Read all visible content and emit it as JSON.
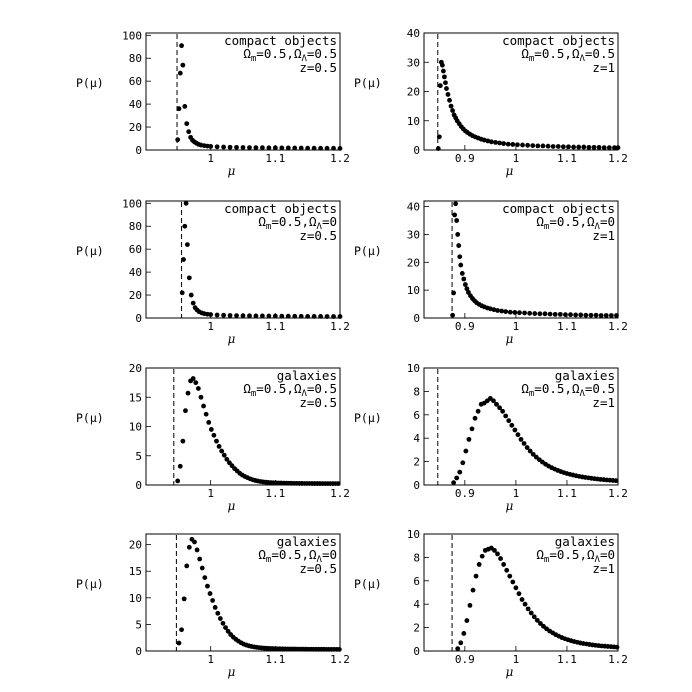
{
  "chart_data": [
    {
      "type": "scatter",
      "annotation": {
        "line1": "compact objects",
        "om_sym": "Ω",
        "om_sub": "m",
        "om_val": "=0.5,",
        "ol_sym": "Ω",
        "ol_sub": "Λ",
        "ol_val": "=0.5",
        "line3": "z=0.5"
      },
      "xlabel": "μ",
      "ylabel": "P(μ)",
      "xlim": [
        0.9,
        1.2
      ],
      "ylim": [
        0,
        102
      ],
      "xticks": [
        1,
        1.1,
        1.2
      ],
      "xtick_labels": [
        "1",
        "1.1",
        "1.2"
      ],
      "yticks": [
        0,
        20,
        40,
        60,
        80,
        100
      ],
      "ytick_labels": [
        "0",
        "20",
        "40",
        "60",
        "80",
        "100"
      ],
      "cutoff_x": 0.948,
      "x": [
        0.949,
        0.951,
        0.953,
        0.955,
        0.957,
        0.96,
        0.963,
        0.966,
        0.969,
        0.972,
        0.975,
        0.978,
        0.981,
        0.985,
        0.99,
        0.995,
        1.0,
        1.01,
        1.02,
        1.03,
        1.04,
        1.05,
        1.06,
        1.07,
        1.08,
        1.09,
        1.1,
        1.11,
        1.12,
        1.13,
        1.14,
        1.15,
        1.16,
        1.17,
        1.18,
        1.19,
        1.2
      ],
      "y": [
        9,
        36,
        67,
        91,
        74,
        38,
        23,
        16,
        11,
        8.5,
        7,
        6,
        5,
        4.3,
        3.8,
        3.4,
        3.1,
        2.8,
        2.6,
        2.4,
        2.3,
        2.2,
        2.1,
        2.0,
        2.0,
        1.9,
        1.9,
        1.8,
        1.8,
        1.7,
        1.7,
        1.6,
        1.6,
        1.5,
        1.5,
        1.5,
        1.4
      ]
    },
    {
      "type": "scatter",
      "annotation": {
        "line1": "compact objects",
        "om_sym": "Ω",
        "om_sub": "m",
        "om_val": "=0.5,",
        "ol_sym": "Ω",
        "ol_sub": "Λ",
        "ol_val": "=0.5",
        "line3": "z=1"
      },
      "xlabel": "μ",
      "ylabel": "P(μ)",
      "xlim": [
        0.82,
        1.2
      ],
      "ylim": [
        0,
        40
      ],
      "xticks": [
        0.9,
        1,
        1.1,
        1.2
      ],
      "xtick_labels": [
        "0.9",
        "1",
        "1.1",
        "1.2"
      ],
      "yticks": [
        0,
        10,
        20,
        30,
        40
      ],
      "ytick_labels": [
        "0",
        "10",
        "20",
        "30",
        "40"
      ],
      "cutoff_x": 0.847,
      "x": [
        0.848,
        0.85,
        0.852,
        0.854,
        0.856,
        0.858,
        0.86,
        0.862,
        0.864,
        0.867,
        0.87,
        0.873,
        0.876,
        0.879,
        0.882,
        0.885,
        0.889,
        0.893,
        0.897,
        0.901,
        0.905,
        0.91,
        0.915,
        0.92,
        0.926,
        0.932,
        0.938,
        0.945,
        0.952,
        0.96,
        0.968,
        0.976,
        0.985,
        0.994,
        1.003,
        1.013,
        1.023,
        1.033,
        1.043,
        1.053,
        1.063,
        1.073,
        1.083,
        1.093,
        1.103,
        1.113,
        1.123,
        1.133,
        1.143,
        1.153,
        1.163,
        1.173,
        1.183,
        1.193,
        1.2
      ],
      "y": [
        0.5,
        4.5,
        22,
        30,
        29,
        27,
        25,
        23,
        21,
        19,
        17,
        15,
        13.5,
        12,
        11,
        10,
        9,
        8,
        7.2,
        6.5,
        6,
        5.4,
        4.9,
        4.5,
        4.1,
        3.7,
        3.4,
        3.1,
        2.8,
        2.6,
        2.4,
        2.2,
        2.0,
        1.9,
        1.8,
        1.7,
        1.6,
        1.5,
        1.4,
        1.4,
        1.3,
        1.2,
        1.2,
        1.1,
        1.1,
        1.0,
        1.0,
        1.0,
        0.9,
        0.9,
        0.9,
        0.8,
        0.8,
        0.8,
        0.8
      ]
    },
    {
      "type": "scatter",
      "annotation": {
        "line1": "compact objects",
        "om_sym": "Ω",
        "om_sub": "m",
        "om_val": "=0.5,",
        "ol_sym": "Ω",
        "ol_sub": "Λ",
        "ol_val": "=0",
        "line3": "z=0.5"
      },
      "xlabel": "μ",
      "ylabel": "P(μ)",
      "xlim": [
        0.9,
        1.2
      ],
      "ylim": [
        0,
        102
      ],
      "xticks": [
        1,
        1.1,
        1.2
      ],
      "xtick_labels": [
        "1",
        "1.1",
        "1.2"
      ],
      "yticks": [
        0,
        20,
        40,
        60,
        80,
        100
      ],
      "ytick_labels": [
        "0",
        "20",
        "40",
        "60",
        "80",
        "100"
      ],
      "cutoff_x": 0.955,
      "x": [
        0.956,
        0.958,
        0.96,
        0.962,
        0.964,
        0.967,
        0.97,
        0.973,
        0.976,
        0.979,
        0.982,
        0.986,
        0.99,
        0.995,
        1.0,
        1.01,
        1.02,
        1.03,
        1.04,
        1.05,
        1.06,
        1.07,
        1.08,
        1.09,
        1.1,
        1.11,
        1.12,
        1.13,
        1.14,
        1.15,
        1.16,
        1.17,
        1.18,
        1.19,
        1.2
      ],
      "y": [
        22,
        51,
        80,
        100,
        64,
        35,
        20,
        13,
        9,
        7,
        5.5,
        4.5,
        3.8,
        3.3,
        3.0,
        2.6,
        2.4,
        2.2,
        2.1,
        2.0,
        1.9,
        1.8,
        1.8,
        1.7,
        1.7,
        1.6,
        1.6,
        1.5,
        1.5,
        1.4,
        1.4,
        1.4,
        1.3,
        1.3,
        1.3
      ]
    },
    {
      "type": "scatter",
      "annotation": {
        "line1": "compact objects",
        "om_sym": "Ω",
        "om_sub": "m",
        "om_val": "=0.5,",
        "ol_sym": "Ω",
        "ol_sub": "Λ",
        "ol_val": "=0",
        "line3": "z=1"
      },
      "xlabel": "μ",
      "ylabel": "P(μ)",
      "xlim": [
        0.82,
        1.2
      ],
      "ylim": [
        0,
        42
      ],
      "xticks": [
        0.9,
        1,
        1.1,
        1.2
      ],
      "xtick_labels": [
        "0.9",
        "1",
        "1.1",
        "1.2"
      ],
      "yticks": [
        0,
        10,
        20,
        30,
        40
      ],
      "ytick_labels": [
        "0",
        "10",
        "20",
        "30",
        "40"
      ],
      "cutoff_x": 0.875,
      "x": [
        0.876,
        0.878,
        0.88,
        0.882,
        0.884,
        0.886,
        0.888,
        0.89,
        0.892,
        0.895,
        0.898,
        0.901,
        0.904,
        0.907,
        0.911,
        0.915,
        0.919,
        0.923,
        0.928,
        0.933,
        0.938,
        0.944,
        0.95,
        0.957,
        0.964,
        0.972,
        0.98,
        0.989,
        0.998,
        1.007,
        1.017,
        1.027,
        1.037,
        1.047,
        1.057,
        1.067,
        1.077,
        1.087,
        1.097,
        1.107,
        1.117,
        1.127,
        1.137,
        1.147,
        1.157,
        1.167,
        1.177,
        1.187,
        1.197
      ],
      "y": [
        1,
        9,
        37,
        41,
        35,
        30,
        26,
        22,
        19,
        16,
        14,
        12,
        10.5,
        9.2,
        8,
        7,
        6.2,
        5.5,
        4.9,
        4.4,
        4.0,
        3.6,
        3.3,
        3.0,
        2.7,
        2.5,
        2.3,
        2.1,
        2.0,
        1.9,
        1.8,
        1.7,
        1.6,
        1.5,
        1.5,
        1.4,
        1.3,
        1.3,
        1.2,
        1.2,
        1.1,
        1.1,
        1.0,
        1.0,
        1.0,
        0.9,
        0.9,
        0.9,
        0.9
      ]
    },
    {
      "type": "scatter",
      "annotation": {
        "line1": "galaxies",
        "om_sym": "Ω",
        "om_sub": "m",
        "om_val": "=0.5,",
        "ol_sym": "Ω",
        "ol_sub": "Λ",
        "ol_val": "=0.5",
        "line3": "z=0.5"
      },
      "xlabel": "μ",
      "ylabel": "P(μ)",
      "xlim": [
        0.9,
        1.2
      ],
      "ylim": [
        0,
        20
      ],
      "xticks": [
        1,
        1.1,
        1.2
      ],
      "xtick_labels": [
        "1",
        "1.1",
        "1.2"
      ],
      "yticks": [
        0,
        5,
        10,
        15,
        20
      ],
      "ytick_labels": [
        "0",
        "5",
        "10",
        "15",
        "20"
      ],
      "cutoff_x": 0.943,
      "x": [
        0.949,
        0.953,
        0.957,
        0.961,
        0.965,
        0.969,
        0.973,
        0.977,
        0.981,
        0.985,
        0.989,
        0.993,
        0.997,
        1.001,
        1.005,
        1.009,
        1.013,
        1.017,
        1.021,
        1.025,
        1.029,
        1.033,
        1.037,
        1.041,
        1.045,
        1.049,
        1.053,
        1.057,
        1.061,
        1.065,
        1.069,
        1.073,
        1.077,
        1.081,
        1.085,
        1.089,
        1.093,
        1.097,
        1.101,
        1.105,
        1.109,
        1.113,
        1.117,
        1.121,
        1.125,
        1.129,
        1.133,
        1.137,
        1.141,
        1.145,
        1.149,
        1.153,
        1.157,
        1.161,
        1.165,
        1.169,
        1.173,
        1.177,
        1.181,
        1.185,
        1.189,
        1.193,
        1.197
      ],
      "y": [
        0.7,
        3.2,
        7.5,
        12.7,
        15.7,
        17.8,
        18.2,
        17.5,
        16.5,
        15.0,
        13.5,
        12.1,
        10.7,
        9.5,
        8.5,
        7.5,
        6.6,
        5.8,
        5.1,
        4.4,
        3.8,
        3.3,
        2.8,
        2.4,
        2.0,
        1.7,
        1.45,
        1.25,
        1.05,
        0.9,
        0.78,
        0.68,
        0.6,
        0.53,
        0.48,
        0.44,
        0.41,
        0.38,
        0.36,
        0.34,
        0.33,
        0.32,
        0.31,
        0.3,
        0.29,
        0.28,
        0.28,
        0.27,
        0.27,
        0.26,
        0.26,
        0.26,
        0.25,
        0.25,
        0.25,
        0.25,
        0.24,
        0.24,
        0.24,
        0.24,
        0.24,
        0.24,
        0.24
      ]
    },
    {
      "type": "scatter",
      "annotation": {
        "line1": "galaxies",
        "om_sym": "Ω",
        "om_sub": "m",
        "om_val": "=0.5,",
        "ol_sym": "Ω",
        "ol_sub": "Λ",
        "ol_val": "=0.5",
        "line3": "z=1"
      },
      "xlabel": "μ",
      "ylabel": "P(μ)",
      "xlim": [
        0.82,
        1.2
      ],
      "ylim": [
        0,
        10
      ],
      "xticks": [
        0.9,
        1,
        1.1,
        1.2
      ],
      "xtick_labels": [
        "0.9",
        "1",
        "1.1",
        "1.2"
      ],
      "yticks": [
        0,
        2,
        4,
        6,
        8,
        10
      ],
      "ytick_labels": [
        "0",
        "2",
        "4",
        "6",
        "8",
        "10"
      ],
      "cutoff_x": 0.847,
      "x": [
        0.878,
        0.884,
        0.89,
        0.896,
        0.902,
        0.908,
        0.914,
        0.92,
        0.926,
        0.932,
        0.938,
        0.944,
        0.95,
        0.956,
        0.962,
        0.968,
        0.974,
        0.98,
        0.986,
        0.992,
        0.998,
        1.004,
        1.01,
        1.016,
        1.022,
        1.028,
        1.034,
        1.04,
        1.046,
        1.052,
        1.058,
        1.064,
        1.07,
        1.076,
        1.082,
        1.088,
        1.094,
        1.1,
        1.106,
        1.112,
        1.118,
        1.124,
        1.13,
        1.136,
        1.142,
        1.148,
        1.154,
        1.16,
        1.166,
        1.172,
        1.178,
        1.184,
        1.19,
        1.196
      ],
      "y": [
        0.2,
        0.6,
        1.1,
        1.9,
        2.9,
        3.9,
        4.8,
        5.7,
        6.3,
        6.9,
        7.0,
        7.2,
        7.4,
        7.2,
        6.9,
        6.6,
        6.3,
        5.9,
        5.5,
        5.1,
        4.7,
        4.3,
        3.9,
        3.55,
        3.2,
        2.9,
        2.62,
        2.38,
        2.16,
        1.96,
        1.78,
        1.62,
        1.48,
        1.36,
        1.25,
        1.15,
        1.06,
        0.98,
        0.91,
        0.85,
        0.79,
        0.74,
        0.69,
        0.65,
        0.61,
        0.57,
        0.54,
        0.51,
        0.48,
        0.46,
        0.43,
        0.41,
        0.39,
        0.37
      ]
    },
    {
      "type": "scatter",
      "annotation": {
        "line1": "galaxies",
        "om_sym": "Ω",
        "om_sub": "m",
        "om_val": "=0.5,",
        "ol_sym": "Ω",
        "ol_sub": "Λ",
        "ol_val": "=0",
        "line3": "z=0.5"
      },
      "xlabel": "μ",
      "ylabel": "P(μ)",
      "xlim": [
        0.9,
        1.2
      ],
      "ylim": [
        0,
        22
      ],
      "xticks": [
        1,
        1.1,
        1.2
      ],
      "xtick_labels": [
        "1",
        "1.1",
        "1.2"
      ],
      "yticks": [
        0,
        5,
        10,
        15,
        20
      ],
      "ytick_labels": [
        "0",
        "5",
        "10",
        "15",
        "20"
      ],
      "cutoff_x": 0.947,
      "x": [
        0.951,
        0.955,
        0.959,
        0.963,
        0.967,
        0.971,
        0.975,
        0.979,
        0.983,
        0.987,
        0.991,
        0.995,
        0.999,
        1.003,
        1.007,
        1.011,
        1.015,
        1.019,
        1.023,
        1.027,
        1.031,
        1.035,
        1.039,
        1.043,
        1.047,
        1.051,
        1.055,
        1.059,
        1.063,
        1.067,
        1.071,
        1.075,
        1.079,
        1.083,
        1.087,
        1.091,
        1.095,
        1.099,
        1.103,
        1.107,
        1.111,
        1.115,
        1.119,
        1.123,
        1.127,
        1.131,
        1.135,
        1.139,
        1.143,
        1.147,
        1.151,
        1.155,
        1.159,
        1.163,
        1.167,
        1.171,
        1.175,
        1.179,
        1.183,
        1.187,
        1.191,
        1.195,
        1.199
      ],
      "y": [
        1.5,
        4.0,
        9.8,
        16.0,
        19.5,
        21.0,
        20.5,
        19.0,
        17.3,
        15.6,
        13.8,
        12.2,
        10.8,
        9.5,
        8.2,
        7.1,
        6.1,
        5.2,
        4.4,
        3.7,
        3.1,
        2.6,
        2.2,
        1.85,
        1.55,
        1.3,
        1.12,
        0.98,
        0.86,
        0.76,
        0.69,
        0.63,
        0.58,
        0.54,
        0.51,
        0.48,
        0.46,
        0.44,
        0.42,
        0.41,
        0.4,
        0.39,
        0.38,
        0.37,
        0.36,
        0.36,
        0.35,
        0.35,
        0.34,
        0.34,
        0.33,
        0.33,
        0.33,
        0.32,
        0.32,
        0.32,
        0.32,
        0.31,
        0.31,
        0.31,
        0.31,
        0.31,
        0.3
      ]
    },
    {
      "type": "scatter",
      "annotation": {
        "line1": "galaxies",
        "om_sym": "Ω",
        "om_sub": "m",
        "om_val": "=0.5,",
        "ol_sym": "Ω",
        "ol_sub": "Λ",
        "ol_val": "=0",
        "line3": "z=1"
      },
      "xlabel": "μ",
      "ylabel": "P(μ)",
      "xlim": [
        0.82,
        1.2
      ],
      "ylim": [
        0,
        10
      ],
      "xticks": [
        0.9,
        1,
        1.1,
        1.2
      ],
      "xtick_labels": [
        "0.9",
        "1",
        "1.1",
        "1.2"
      ],
      "yticks": [
        0,
        2,
        4,
        6,
        8,
        10
      ],
      "ytick_labels": [
        "0",
        "2",
        "4",
        "6",
        "8",
        "10"
      ],
      "cutoff_x": 0.875,
      "x": [
        0.886,
        0.892,
        0.898,
        0.904,
        0.91,
        0.916,
        0.922,
        0.928,
        0.934,
        0.94,
        0.946,
        0.952,
        0.958,
        0.964,
        0.97,
        0.976,
        0.982,
        0.988,
        0.994,
        1.0,
        1.006,
        1.012,
        1.018,
        1.024,
        1.03,
        1.036,
        1.042,
        1.048,
        1.054,
        1.06,
        1.066,
        1.072,
        1.078,
        1.084,
        1.09,
        1.096,
        1.102,
        1.108,
        1.114,
        1.12,
        1.126,
        1.132,
        1.138,
        1.144,
        1.15,
        1.156,
        1.162,
        1.168,
        1.174,
        1.18,
        1.186,
        1.192,
        1.198
      ],
      "y": [
        0.2,
        0.7,
        1.5,
        2.6,
        3.9,
        5.2,
        6.4,
        7.4,
        8.1,
        8.6,
        8.7,
        8.8,
        8.6,
        8.3,
        7.9,
        7.4,
        6.9,
        6.4,
        5.9,
        5.4,
        4.9,
        4.4,
        4.0,
        3.6,
        3.25,
        2.92,
        2.62,
        2.35,
        2.11,
        1.9,
        1.71,
        1.55,
        1.4,
        1.27,
        1.15,
        1.05,
        0.96,
        0.88,
        0.81,
        0.75,
        0.69,
        0.64,
        0.6,
        0.56,
        0.52,
        0.49,
        0.46,
        0.43,
        0.41,
        0.39,
        0.37,
        0.35,
        0.33
      ]
    }
  ]
}
